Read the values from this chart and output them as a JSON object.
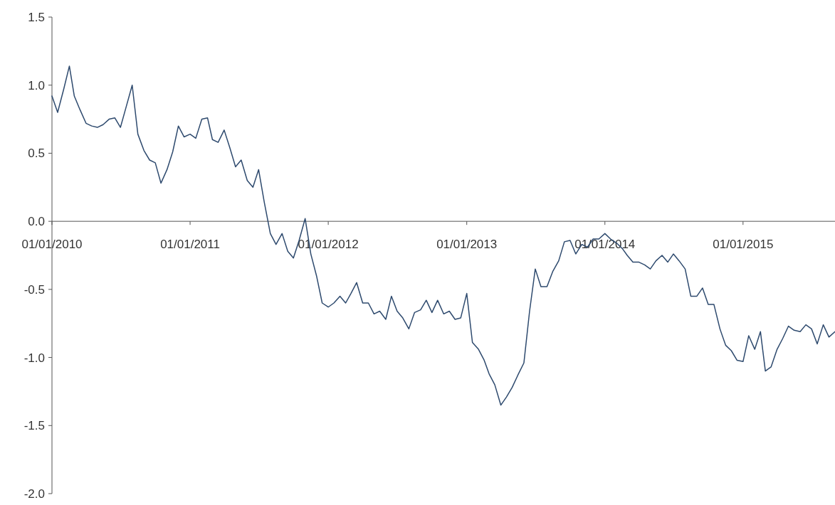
{
  "chart_data": {
    "type": "line",
    "x": [
      "2010-01-01",
      "2010-01-16",
      "2010-02-01",
      "2010-02-16",
      "2010-03-01",
      "2010-03-16",
      "2010-04-01",
      "2010-04-16",
      "2010-05-01",
      "2010-05-16",
      "2010-06-01",
      "2010-06-16",
      "2010-07-01",
      "2010-07-16",
      "2010-08-01",
      "2010-08-16",
      "2010-09-01",
      "2010-09-16",
      "2010-10-01",
      "2010-10-16",
      "2010-11-01",
      "2010-11-16",
      "2010-12-01",
      "2010-12-16",
      "2011-01-01",
      "2011-01-16",
      "2011-02-01",
      "2011-02-16",
      "2011-03-01",
      "2011-03-16",
      "2011-04-01",
      "2011-04-16",
      "2011-05-01",
      "2011-05-16",
      "2011-06-01",
      "2011-06-16",
      "2011-07-01",
      "2011-07-16",
      "2011-08-01",
      "2011-08-16",
      "2011-09-01",
      "2011-09-16",
      "2011-10-01",
      "2011-10-16",
      "2011-11-01",
      "2011-11-16",
      "2011-12-01",
      "2011-12-16",
      "2012-01-01",
      "2012-01-16",
      "2012-02-01",
      "2012-02-16",
      "2012-03-01",
      "2012-03-16",
      "2012-04-01",
      "2012-04-16",
      "2012-05-01",
      "2012-05-16",
      "2012-06-01",
      "2012-06-16",
      "2012-07-01",
      "2012-07-16",
      "2012-08-01",
      "2012-08-16",
      "2012-09-01",
      "2012-09-16",
      "2012-10-01",
      "2012-10-16",
      "2012-11-01",
      "2012-11-16",
      "2012-12-01",
      "2012-12-16",
      "2013-01-01",
      "2013-01-16",
      "2013-02-01",
      "2013-02-16",
      "2013-03-01",
      "2013-03-16",
      "2013-04-01",
      "2013-04-16",
      "2013-05-01",
      "2013-05-16",
      "2013-06-01",
      "2013-06-16",
      "2013-07-01",
      "2013-07-16",
      "2013-08-01",
      "2013-08-16",
      "2013-09-01",
      "2013-09-16",
      "2013-10-01",
      "2013-10-16",
      "2013-11-01",
      "2013-11-16",
      "2013-12-01",
      "2013-12-16",
      "2014-01-01",
      "2014-01-16",
      "2014-02-01",
      "2014-02-16",
      "2014-03-01",
      "2014-03-16",
      "2014-04-01",
      "2014-04-16",
      "2014-05-01",
      "2014-05-16",
      "2014-06-01",
      "2014-06-16",
      "2014-07-01",
      "2014-07-16",
      "2014-08-01",
      "2014-08-16",
      "2014-09-01",
      "2014-09-16",
      "2014-10-01",
      "2014-10-16",
      "2014-11-01",
      "2014-11-16",
      "2014-12-01",
      "2014-12-16",
      "2015-01-01",
      "2015-01-16",
      "2015-02-01",
      "2015-02-16",
      "2015-03-01",
      "2015-03-16",
      "2015-04-01",
      "2015-04-16",
      "2015-05-01",
      "2015-05-16",
      "2015-06-01",
      "2015-06-16",
      "2015-07-01",
      "2015-07-16",
      "2015-08-01",
      "2015-08-16",
      "2015-09-01"
    ],
    "values": [
      0.92,
      0.8,
      0.97,
      1.14,
      0.92,
      0.82,
      0.72,
      0.7,
      0.69,
      0.71,
      0.75,
      0.76,
      0.69,
      0.84,
      1.0,
      0.64,
      0.52,
      0.45,
      0.43,
      0.28,
      0.38,
      0.51,
      0.7,
      0.62,
      0.64,
      0.61,
      0.75,
      0.76,
      0.6,
      0.58,
      0.67,
      0.54,
      0.4,
      0.45,
      0.3,
      0.25,
      0.38,
      0.14,
      -0.09,
      -0.17,
      -0.09,
      -0.22,
      -0.27,
      -0.14,
      0.02,
      -0.24,
      -0.4,
      -0.6,
      -0.63,
      -0.6,
      -0.55,
      -0.6,
      -0.53,
      -0.45,
      -0.6,
      -0.6,
      -0.68,
      -0.66,
      -0.72,
      -0.55,
      -0.66,
      -0.71,
      -0.79,
      -0.67,
      -0.65,
      -0.58,
      -0.67,
      -0.58,
      -0.68,
      -0.66,
      -0.72,
      -0.71,
      -0.53,
      -0.89,
      -0.94,
      -1.02,
      -1.12,
      -1.2,
      -1.35,
      -1.29,
      -1.22,
      -1.13,
      -1.04,
      -0.66,
      -0.35,
      -0.48,
      -0.48,
      -0.37,
      -0.29,
      -0.15,
      -0.14,
      -0.24,
      -0.17,
      -0.19,
      -0.13,
      -0.13,
      -0.09,
      -0.13,
      -0.16,
      -0.2,
      -0.25,
      -0.3,
      -0.3,
      -0.32,
      -0.35,
      -0.29,
      -0.25,
      -0.3,
      -0.24,
      -0.29,
      -0.35,
      -0.55,
      -0.55,
      -0.49,
      -0.61,
      -0.61,
      -0.79,
      -0.91,
      -0.95,
      -1.02,
      -1.03,
      -0.84,
      -0.94,
      -0.81,
      -1.1,
      -1.07,
      -0.94,
      -0.86,
      -0.77,
      -0.8,
      -0.81,
      -0.76,
      -0.79,
      -0.9,
      -0.76,
      -0.85,
      -0.81
    ],
    "color": "#2e4a6e",
    "xlim": [
      "2010-01-01",
      "2015-09-01"
    ],
    "xticks": [
      {
        "value": "2010-01-01",
        "label": "01/01/2010"
      },
      {
        "value": "2011-01-01",
        "label": "01/01/2011"
      },
      {
        "value": "2012-01-01",
        "label": "01/01/2012"
      },
      {
        "value": "2013-01-01",
        "label": "01/01/2013"
      },
      {
        "value": "2014-01-01",
        "label": "01/01/2014"
      },
      {
        "value": "2015-01-01",
        "label": "01/01/2015"
      }
    ],
    "ylim": [
      -2,
      1.5
    ],
    "yticks": [
      {
        "value": -2,
        "label": "-2.0"
      },
      {
        "value": -1.5,
        "label": "-1.5"
      },
      {
        "value": -1,
        "label": "-1.0"
      },
      {
        "value": -0.5,
        "label": "-0.5"
      },
      {
        "value": 0,
        "label": "0.0"
      },
      {
        "value": 0.5,
        "label": "0.5"
      },
      {
        "value": 1,
        "label": "1.0"
      },
      {
        "value": 1.5,
        "label": "1.5"
      }
    ]
  }
}
